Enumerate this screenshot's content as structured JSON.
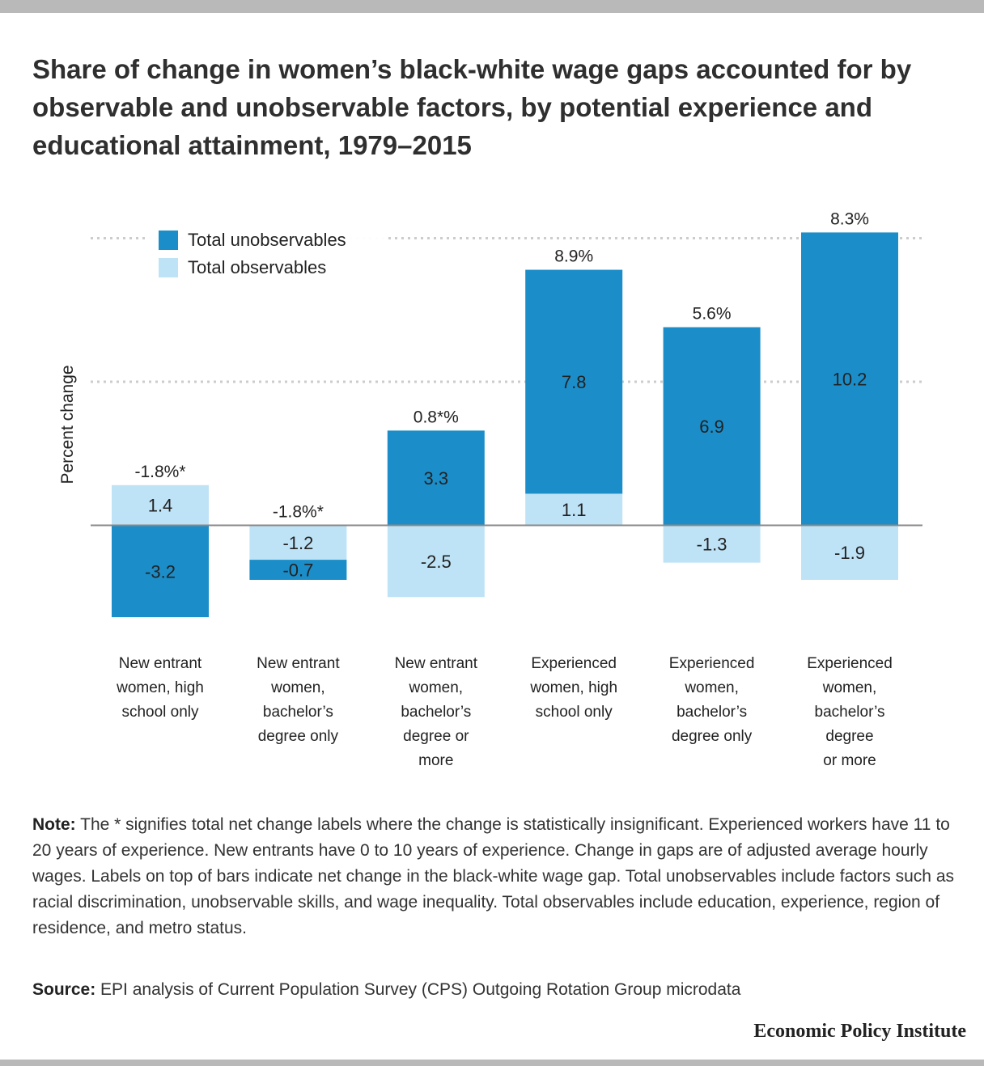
{
  "title": "Share of change in women’s black-white wage gaps accounted for by observable and unobservable factors, by potential experience and educational attainment, 1979–2015",
  "ylabel": "Percent change",
  "legend": {
    "unobservables": "Total unobservables",
    "observables": "Total observables"
  },
  "colors": {
    "unobservables": "#1b8ec9",
    "observables": "#bfe3f6",
    "gridline": "#cccccc",
    "zeroline": "#888888"
  },
  "chart_data": {
    "type": "bar",
    "stacked": true,
    "categories": [
      [
        "New entrant",
        "women, high",
        "school only"
      ],
      [
        "New entrant",
        "women,",
        "bachelor’s",
        "degree only"
      ],
      [
        "New entrant",
        "women,",
        "bachelor’s",
        "degree or",
        "more"
      ],
      [
        "Experienced",
        "women, high",
        "school only"
      ],
      [
        "Experienced",
        "women,",
        "bachelor’s",
        "degree only"
      ],
      [
        "Experienced",
        "women,",
        "bachelor’s",
        "degree",
        "or more"
      ]
    ],
    "series": [
      {
        "name": "Total observables",
        "values": [
          1.4,
          -1.2,
          -2.5,
          1.1,
          -1.3,
          -1.9
        ],
        "labels": [
          "1.4",
          "-1.2",
          "-2.5",
          "1.1",
          "-1.3",
          "-1.9"
        ]
      },
      {
        "name": "Total unobservables",
        "values": [
          -3.2,
          -0.7,
          3.3,
          7.8,
          6.9,
          10.2
        ],
        "labels": [
          "-3.2",
          "-0.7",
          "3.3",
          "7.8",
          "6.9",
          "10.2"
        ]
      }
    ],
    "net_labels": [
      "-1.8%*",
      "-1.8%*",
      "0.8*%",
      "8.9%",
      "5.6%",
      "8.3%"
    ],
    "gridlines": [
      5,
      10
    ],
    "grid": true,
    "legend_position": "top-left",
    "ylim": [
      -4,
      11
    ]
  },
  "note": {
    "label": "Note:",
    "text": " The *  signifies total net change labels where the change is statistically insignificant. Experienced workers have 11 to 20 years of experience. New entrants have 0 to 10 years of experience. Change in gaps are of adjusted average hourly wages. Labels on top of bars indicate net change in the black-white wage gap. Total unobservables include factors such as racial discrimination, unobservable skills, and wage inequality. Total observables include education, experience, region of residence, and metro status."
  },
  "source": {
    "label": "Source:",
    "text": " EPI analysis of Current Population Survey (CPS) Outgoing Rotation Group microdata"
  },
  "brand": "Economic Policy Institute"
}
